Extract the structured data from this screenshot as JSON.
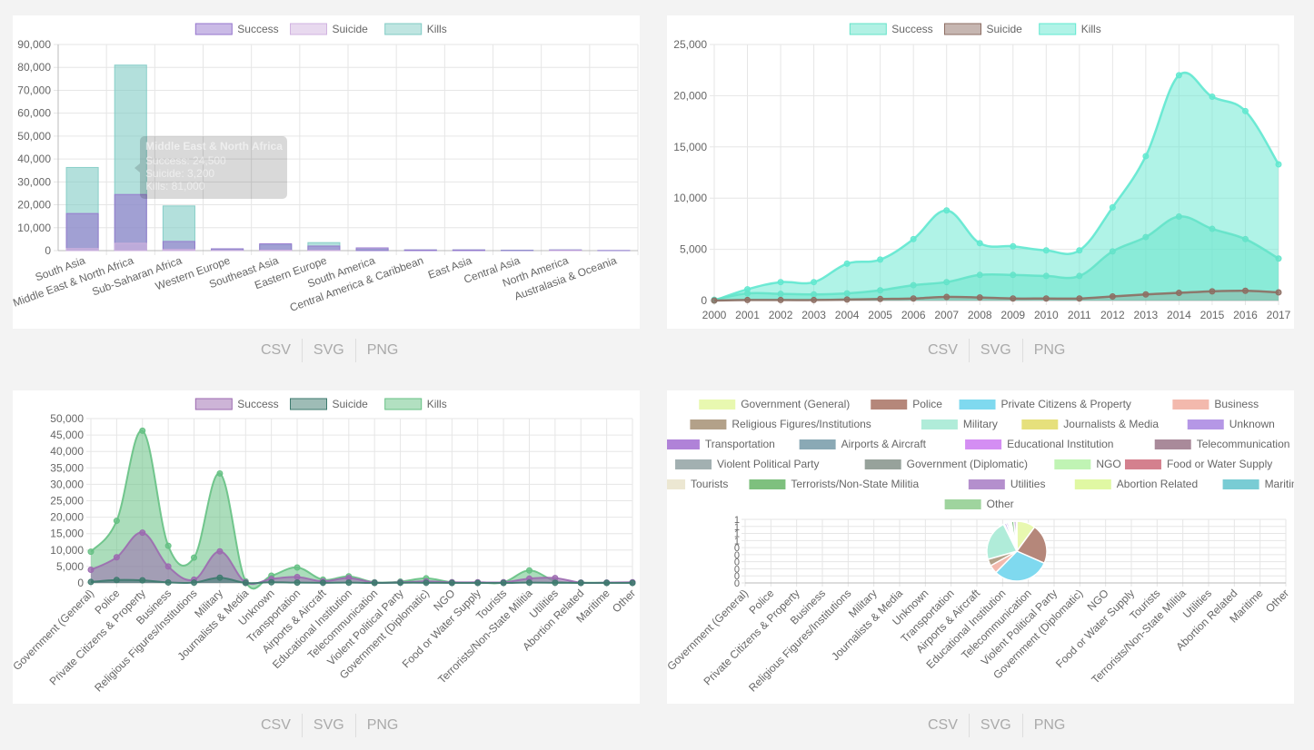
{
  "exports": [
    "CSV",
    "SVG",
    "PNG"
  ],
  "chart_data": [
    {
      "type": "bar",
      "stacked": false,
      "legend": "top",
      "categories": [
        "South Asia",
        "Middle East & North Africa",
        "Sub-Saharan Africa",
        "Western Europe",
        "Southeast Asia",
        "Eastern Europe",
        "South America",
        "Central America & Caribbean",
        "East Asia",
        "Central Asia",
        "North America",
        "Australasia & Oceania"
      ],
      "series": [
        {
          "name": "Success",
          "color": "#9575cd",
          "values": [
            16200,
            24500,
            4000,
            800,
            3000,
            2000,
            1200,
            300,
            300,
            100,
            300,
            50
          ]
        },
        {
          "name": "Suicide",
          "color": "#d1b3e0",
          "values": [
            900,
            3200,
            500,
            50,
            200,
            100,
            0,
            0,
            0,
            0,
            30,
            0
          ]
        },
        {
          "name": "Kills",
          "color": "#80cbc4",
          "values": [
            36300,
            81000,
            19500,
            700,
            2500,
            3500,
            500,
            300,
            300,
            200,
            300,
            30
          ]
        }
      ],
      "ylim": [
        0,
        90000
      ],
      "yticks": [
        0,
        10000,
        20000,
        30000,
        40000,
        50000,
        60000,
        70000,
        80000,
        90000
      ],
      "grid": true,
      "tooltip": {
        "title": "Middle East & North Africa",
        "lines": [
          "Success: 24,500",
          "Suicide: 3,200",
          "Kills: 81,000"
        ]
      }
    },
    {
      "type": "area",
      "legend": "top",
      "x": [
        "2000",
        "2001",
        "2002",
        "2003",
        "2004",
        "2005",
        "2006",
        "2007",
        "2008",
        "2009",
        "2010",
        "2011",
        "2012",
        "2013",
        "2014",
        "2015",
        "2016",
        "2017"
      ],
      "series": [
        {
          "name": "Success",
          "color": "#64e3c9",
          "values": [
            80,
            700,
            650,
            600,
            700,
            1000,
            1500,
            1800,
            2500,
            2500,
            2400,
            2400,
            4800,
            6200,
            8200,
            7000,
            6000,
            4100
          ]
        },
        {
          "name": "Suicide",
          "color": "#8d6e63",
          "values": [
            0,
            50,
            50,
            50,
            100,
            150,
            200,
            350,
            300,
            200,
            200,
            200,
            400,
            600,
            750,
            900,
            950,
            800
          ]
        },
        {
          "name": "Kills",
          "color": "#62e8d0",
          "values": [
            0,
            1100,
            1800,
            1800,
            3600,
            4000,
            6000,
            8800,
            5600,
            5300,
            4900,
            4900,
            9100,
            14100,
            22000,
            19900,
            18500,
            13300
          ]
        }
      ],
      "ylim": [
        0,
        25000
      ],
      "yticks": [
        0,
        5000,
        10000,
        15000,
        20000,
        25000
      ],
      "grid": true
    },
    {
      "type": "area",
      "legend": "top",
      "x": [
        "Government (General)",
        "Police",
        "Private Citizens & Property",
        "Business",
        "Religious Figures/Institutions",
        "Military",
        "Journalists & Media",
        "Unknown",
        "Transportation",
        "Airports & Aircraft",
        "Educational Institution",
        "Telecommunication",
        "Violent Political Party",
        "Government (Diplomatic)",
        "NGO",
        "Food or Water Supply",
        "Tourists",
        "Terrorists/Non-State Militia",
        "Utilities",
        "Abortion Related",
        "Maritime",
        "Other"
      ],
      "series": [
        {
          "name": "Success",
          "color": "#9c6ab0",
          "values": [
            4000,
            7800,
            15300,
            5000,
            1000,
            9600,
            200,
            1200,
            1800,
            500,
            1500,
            100,
            200,
            500,
            200,
            200,
            200,
            1300,
            1500,
            100,
            100,
            200
          ]
        },
        {
          "name": "Suicide",
          "color": "#3d7a6e",
          "values": [
            300,
            900,
            800,
            150,
            100,
            1600,
            0,
            200,
            100,
            50,
            100,
            0,
            50,
            50,
            0,
            0,
            0,
            100,
            50,
            0,
            0,
            0
          ]
        },
        {
          "name": "Kills",
          "color": "#66c184",
          "values": [
            9500,
            18900,
            46300,
            11300,
            7700,
            33300,
            500,
            2200,
            4700,
            1000,
            2000,
            200,
            400,
            1400,
            200,
            100,
            200,
            3800,
            600,
            100,
            100,
            100
          ]
        }
      ],
      "ylim": [
        0,
        50000
      ],
      "yticks": [
        0,
        5000,
        10000,
        15000,
        20000,
        25000,
        30000,
        35000,
        40000,
        45000,
        50000
      ],
      "grid": true
    },
    {
      "type": "pie",
      "legend": "top",
      "categories": [
        "Government (General)",
        "Police",
        "Private Citizens & Property",
        "Business",
        "Religious Figures/Institutions",
        "Military",
        "Journalists & Media",
        "Unknown",
        "Transportation",
        "Airports & Aircraft",
        "Educational Institution",
        "Telecommunication",
        "Violent Political Party",
        "Government (Diplomatic)",
        "NGO",
        "Food or Water Supply",
        "Tourists",
        "Terrorists/Non-State Militia",
        "Utilities",
        "Abortion Related",
        "Maritime",
        "Other"
      ],
      "colors": [
        "#e8f8b0",
        "#b5877a",
        "#7fd9ef",
        "#f3b9ad",
        "#b3a189",
        "#b0ecd9",
        "#e6e07c",
        "#b597e6",
        "#b082d8",
        "#8aa9b5",
        "#d48ef3",
        "#a98a9a",
        "#a2b0b1",
        "#97a29b",
        "#c0f4b4",
        "#d4808e",
        "#ece7d2",
        "#7ec07e",
        "#b48fcd",
        "#e0f8a3",
        "#79ccd4",
        "#9fd49e"
      ],
      "values": [
        11000,
        23400,
        33500,
        5000,
        4000,
        24000,
        600,
        1200,
        1000,
        200,
        600,
        100,
        100,
        500,
        200,
        100,
        200,
        1500,
        1300,
        100,
        100,
        200
      ],
      "x_tick_labels": [
        "Government (General)",
        "Police",
        "Private Citizens & Property",
        "Business",
        "Religious Figures/Institutions",
        "Military",
        "Journalists & Media",
        "Unknown",
        "Transportation",
        "Airports & Aircraft",
        "Educational Institution",
        "Telecommunication",
        "Violent Political Party",
        "Government (Diplomatic)",
        "NGO",
        "Food or Water Supply",
        "Tourists",
        "Terrorists/Non-State Militia",
        "Utilities",
        "Abortion Related",
        "Maritime",
        "Other"
      ],
      "y_tick_labels": [
        "1",
        "1",
        "1",
        "1",
        "0",
        "0",
        "0",
        "0",
        "0",
        "0"
      ]
    }
  ]
}
